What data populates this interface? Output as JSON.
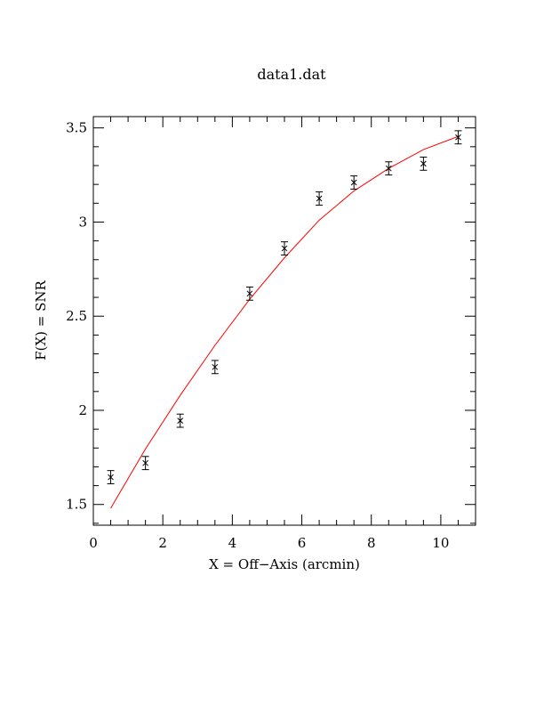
{
  "chart_data": {
    "type": "scatter",
    "title": "data1.dat",
    "xlabel": "X = Off−Axis (arcmin)",
    "ylabel": "F(X) = SNR",
    "xlim": [
      0,
      11
    ],
    "ylim": [
      1.39,
      3.56
    ],
    "x_major_ticks": [
      0,
      2,
      4,
      6,
      8,
      10
    ],
    "x_tick_labels": [
      "0",
      "2",
      "4",
      "6",
      "8",
      "10"
    ],
    "x_minor_step": 0.5,
    "y_major_ticks": [
      1.5,
      2,
      2.5,
      3,
      3.5
    ],
    "y_tick_labels": [
      "1.5",
      "2",
      "2.5",
      "3",
      "3.5"
    ],
    "y_minor_step": 0.1,
    "grid": false,
    "points": {
      "x": [
        0.5,
        1.5,
        2.5,
        3.5,
        4.5,
        5.5,
        6.5,
        7.5,
        8.5,
        9.5,
        10.5
      ],
      "y": [
        1.645,
        1.72,
        1.945,
        2.23,
        2.62,
        2.86,
        3.125,
        3.21,
        3.285,
        3.31,
        3.45
      ],
      "err": [
        0.035,
        0.035,
        0.035,
        0.035,
        0.035,
        0.035,
        0.035,
        0.035,
        0.035,
        0.035,
        0.035
      ],
      "marker": "x",
      "color": "#000000"
    },
    "model": {
      "x": [
        0.5,
        1.5,
        2.5,
        3.5,
        4.5,
        5.5,
        6.5,
        7.5,
        8.5,
        9.5,
        10.5
      ],
      "y": [
        1.48,
        1.795,
        2.08,
        2.345,
        2.59,
        2.81,
        3.01,
        3.165,
        3.285,
        3.385,
        3.455
      ],
      "color": "#ff0000"
    }
  }
}
